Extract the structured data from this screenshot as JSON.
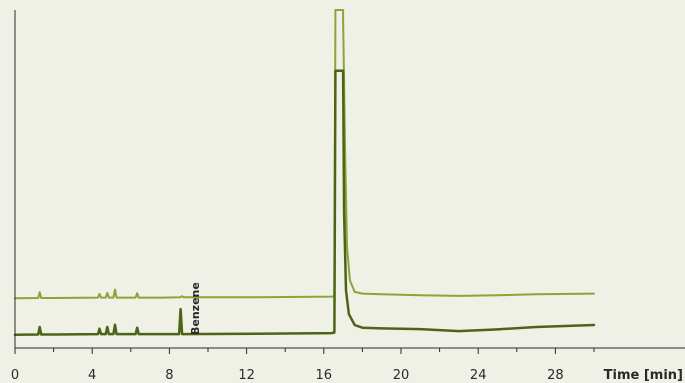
{
  "chart_data": {
    "type": "line",
    "xlabel": "Time [min]",
    "ylabel": "",
    "xlim": [
      0,
      31
    ],
    "ylim": [
      0,
      100
    ],
    "x_ticks": [
      0,
      4,
      8,
      12,
      16,
      20,
      24,
      28
    ],
    "x_minor_ticks": [
      2,
      6,
      10,
      14,
      18,
      22,
      26,
      30
    ],
    "grid": false,
    "legend": "none",
    "annotations": [
      {
        "text": "Benzene",
        "x": 8.6
      }
    ],
    "series": [
      {
        "color": "#8ca43a",
        "stroke_width": 2,
        "baseline": 14.7,
        "offscale_peak": [
          16.6,
          17.0
        ],
        "peak_top": 100,
        "points": [
          [
            0,
            14.7
          ],
          [
            1.2,
            14.8
          ],
          [
            1.28,
            16.5
          ],
          [
            1.36,
            14.8
          ],
          [
            2.1,
            14.8
          ],
          [
            4.3,
            14.9
          ],
          [
            4.38,
            16
          ],
          [
            4.46,
            14.9
          ],
          [
            4.7,
            14.9
          ],
          [
            4.78,
            16.3
          ],
          [
            4.86,
            14.9
          ],
          [
            5.1,
            14.9
          ],
          [
            5.18,
            17.3
          ],
          [
            5.26,
            14.9
          ],
          [
            6.25,
            14.9
          ],
          [
            6.33,
            16.2
          ],
          [
            6.41,
            14.9
          ],
          [
            7.7,
            14.9
          ],
          [
            8.55,
            15
          ],
          [
            8.65,
            15.3
          ],
          [
            8.75,
            15
          ],
          [
            12.5,
            15
          ],
          [
            16.4,
            15.2
          ],
          [
            16.55,
            15.3
          ],
          [
            16.6,
            97.5
          ],
          [
            16.6,
            100
          ],
          [
            17.0,
            100
          ],
          [
            17.0,
            97.5
          ],
          [
            17.1,
            60
          ],
          [
            17.2,
            30
          ],
          [
            17.35,
            20
          ],
          [
            17.6,
            16.6
          ],
          [
            18.0,
            16.1
          ],
          [
            19,
            15.9
          ],
          [
            21,
            15.6
          ],
          [
            23,
            15.4
          ],
          [
            25,
            15.6
          ],
          [
            27,
            15.9
          ],
          [
            30,
            16.1
          ]
        ]
      },
      {
        "color": "#4d6416",
        "stroke_width": 2.5,
        "baseline": 3.9,
        "offscale_peak": [
          16.6,
          17.0
        ],
        "peak_top": 82,
        "points": [
          [
            0,
            3.9
          ],
          [
            1.2,
            4.0
          ],
          [
            1.28,
            6.2
          ],
          [
            1.36,
            4.0
          ],
          [
            2.1,
            4.0
          ],
          [
            4.3,
            4.1
          ],
          [
            4.38,
            5.7
          ],
          [
            4.46,
            4.1
          ],
          [
            4.7,
            4.1
          ],
          [
            4.78,
            6.2
          ],
          [
            4.86,
            4.1
          ],
          [
            5.1,
            4.1
          ],
          [
            5.18,
            6.9
          ],
          [
            5.26,
            4.1
          ],
          [
            6.25,
            4.1
          ],
          [
            6.33,
            6.0
          ],
          [
            6.41,
            4.1
          ],
          [
            7.7,
            4.1
          ],
          [
            8.5,
            4.1
          ],
          [
            8.58,
            11.5
          ],
          [
            8.66,
            4.1
          ],
          [
            12.5,
            4.2
          ],
          [
            16.4,
            4.4
          ],
          [
            16.55,
            4.6
          ],
          [
            16.6,
            82
          ],
          [
            17.0,
            82
          ],
          [
            17.05,
            40
          ],
          [
            17.15,
            17
          ],
          [
            17.3,
            10
          ],
          [
            17.6,
            6.8
          ],
          [
            18.0,
            6.0
          ],
          [
            19,
            5.8
          ],
          [
            21,
            5.6
          ],
          [
            23,
            5.0
          ],
          [
            25,
            5.5
          ],
          [
            27,
            6.2
          ],
          [
            30,
            6.8
          ]
        ]
      }
    ]
  }
}
